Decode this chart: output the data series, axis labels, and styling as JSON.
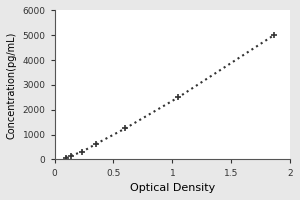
{
  "x_data": [
    0.094,
    0.141,
    0.235,
    0.352,
    0.6,
    1.05,
    1.86
  ],
  "y_data": [
    78,
    156,
    312,
    625,
    1250,
    2500,
    5000
  ],
  "xlabel": "Optical Density",
  "ylabel": "Concentration(pg/mL)",
  "xlim": [
    0,
    2.0
  ],
  "ylim": [
    0,
    6000
  ],
  "xticks": [
    0,
    0.5,
    1.0,
    1.5,
    2.0
  ],
  "yticks": [
    0,
    1000,
    2000,
    3000,
    4000,
    5000,
    6000
  ],
  "xtick_labels": [
    "0",
    "0.5",
    "1",
    "1.5",
    "2"
  ],
  "ytick_labels": [
    "0",
    "1000",
    "2000",
    "3000",
    "4000",
    "5000",
    "6000"
  ],
  "line_color": "#333333",
  "marker": "+",
  "marker_size": 5,
  "line_style": ":",
  "line_width": 1.5,
  "background_color": "#e8e8e8",
  "plot_background": "#ffffff",
  "xlabel_fontsize": 8,
  "ylabel_fontsize": 7,
  "tick_fontsize": 6.5
}
